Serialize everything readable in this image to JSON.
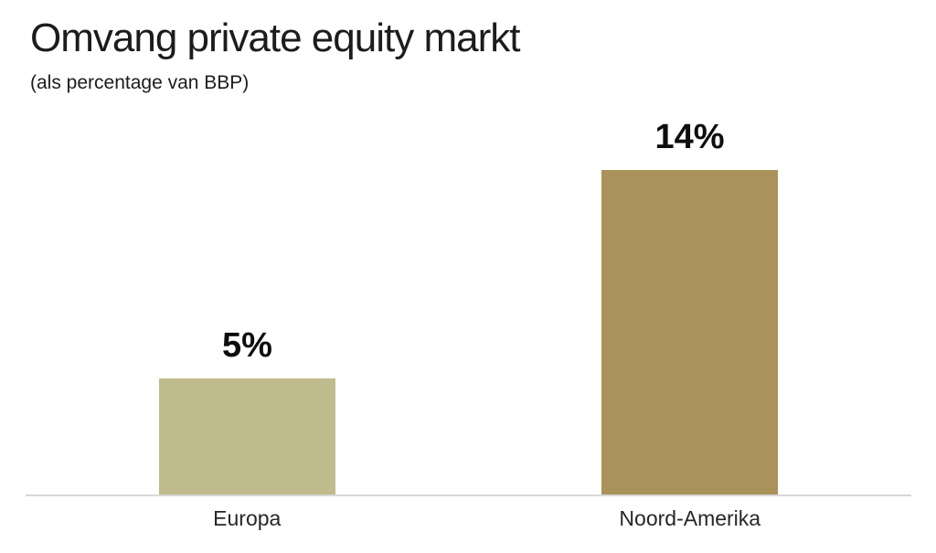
{
  "chart_data": {
    "type": "bar",
    "title": "Omvang private equity markt",
    "subtitle": "(als percentage van BBP)",
    "categories": [
      "Europa",
      "Noord-Amerika"
    ],
    "values": [
      5,
      14
    ],
    "value_labels": [
      "5%",
      "14%"
    ],
    "series": [
      {
        "name": "Omvang private equity markt (% van BBP)",
        "values": [
          5,
          14
        ]
      }
    ],
    "bar_colors": [
      "#C0BB8C",
      "#A9935A"
    ],
    "ylim": [
      0,
      16.6
    ],
    "xlabel": "",
    "ylabel": "",
    "grid": false,
    "legend": "none",
    "y_axis_visible": false,
    "axis_line_color": "#D8D8D8",
    "background_color": "#FFFFFF",
    "label_text_color": "#0D0D0D"
  }
}
